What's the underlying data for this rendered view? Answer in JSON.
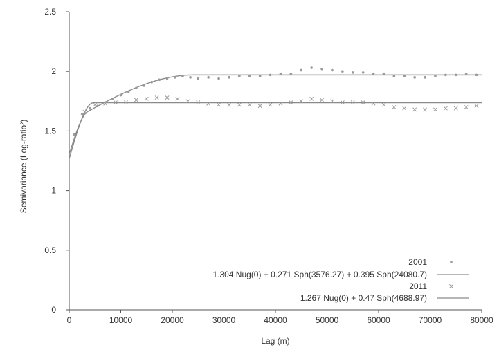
{
  "chart_data": {
    "type": "scatter",
    "title": "",
    "xlabel": "Lag (m)",
    "ylabel": "Semivariance (Log-ratio²)",
    "xlim": [
      0,
      80000
    ],
    "ylim": [
      0,
      2.5
    ],
    "xticks": [
      "0",
      "10000",
      "20000",
      "30000",
      "40000",
      "50000",
      "60000",
      "70000",
      "80000"
    ],
    "yticks": [
      "0",
      "0.5",
      "1",
      "1.5",
      "2",
      "2.5"
    ],
    "grid": false,
    "legend_position": "bottom-right",
    "series": [
      {
        "name": "2001",
        "marker": "dot",
        "color": "#9a9a9a",
        "points": [
          [
            1000,
            1.47
          ],
          [
            2500,
            1.64
          ],
          [
            4000,
            1.69
          ],
          [
            5500,
            1.71
          ],
          [
            7000,
            1.74
          ],
          [
            8500,
            1.77
          ],
          [
            10000,
            1.8
          ],
          [
            11500,
            1.83
          ],
          [
            13000,
            1.86
          ],
          [
            14500,
            1.88
          ],
          [
            16000,
            1.91
          ],
          [
            17500,
            1.93
          ],
          [
            19000,
            1.94
          ],
          [
            20500,
            1.95
          ],
          [
            22000,
            1.96
          ],
          [
            23500,
            1.95
          ],
          [
            25000,
            1.94
          ],
          [
            27000,
            1.95
          ],
          [
            29000,
            1.94
          ],
          [
            31000,
            1.95
          ],
          [
            33000,
            1.96
          ],
          [
            35000,
            1.96
          ],
          [
            37000,
            1.96
          ],
          [
            39000,
            1.97
          ],
          [
            41000,
            1.98
          ],
          [
            43000,
            1.98
          ],
          [
            45000,
            2.01
          ],
          [
            47000,
            2.03
          ],
          [
            49000,
            2.02
          ],
          [
            51000,
            2.01
          ],
          [
            53000,
            2.0
          ],
          [
            55000,
            1.99
          ],
          [
            57000,
            1.99
          ],
          [
            59000,
            1.98
          ],
          [
            61000,
            1.98
          ],
          [
            63000,
            1.96
          ],
          [
            65000,
            1.96
          ],
          [
            67000,
            1.95
          ],
          [
            69000,
            1.95
          ],
          [
            71000,
            1.96
          ],
          [
            73000,
            1.97
          ],
          [
            75000,
            1.97
          ],
          [
            77000,
            1.98
          ],
          [
            79000,
            1.97
          ]
        ]
      },
      {
        "name": "2011",
        "marker": "x",
        "color": "#9a9a9a",
        "points": [
          [
            3000,
            1.66
          ],
          [
            5000,
            1.72
          ],
          [
            7000,
            1.73
          ],
          [
            9000,
            1.74
          ],
          [
            11000,
            1.74
          ],
          [
            13000,
            1.76
          ],
          [
            15000,
            1.77
          ],
          [
            17000,
            1.78
          ],
          [
            19000,
            1.78
          ],
          [
            21000,
            1.77
          ],
          [
            23000,
            1.75
          ],
          [
            25000,
            1.74
          ],
          [
            27000,
            1.73
          ],
          [
            29000,
            1.72
          ],
          [
            31000,
            1.72
          ],
          [
            33000,
            1.72
          ],
          [
            35000,
            1.72
          ],
          [
            37000,
            1.71
          ],
          [
            39000,
            1.72
          ],
          [
            41000,
            1.73
          ],
          [
            43000,
            1.74
          ],
          [
            45000,
            1.75
          ],
          [
            47000,
            1.77
          ],
          [
            49000,
            1.76
          ],
          [
            51000,
            1.75
          ],
          [
            53000,
            1.74
          ],
          [
            55000,
            1.74
          ],
          [
            57000,
            1.74
          ],
          [
            59000,
            1.73
          ],
          [
            61000,
            1.72
          ],
          [
            63000,
            1.7
          ],
          [
            65000,
            1.69
          ],
          [
            67000,
            1.68
          ],
          [
            69000,
            1.68
          ],
          [
            71000,
            1.68
          ],
          [
            73000,
            1.69
          ],
          [
            75000,
            1.69
          ],
          [
            77000,
            1.7
          ],
          [
            79000,
            1.71
          ]
        ]
      }
    ],
    "models": [
      {
        "label": "1.304 Nug(0) + 0.271 Sph(3576.27) + 0.395 Sph(24080.7)",
        "nugget": 1.304,
        "components": [
          {
            "sill": 0.271,
            "range": 3576.27
          },
          {
            "sill": 0.395,
            "range": 24080.7
          }
        ],
        "color": "#8a8a8a"
      },
      {
        "label": "1.267 Nug(0) + 0.47 Sph(4688.97)",
        "nugget": 1.267,
        "components": [
          {
            "sill": 0.47,
            "range": 4688.97
          }
        ],
        "color": "#8a8a8a"
      }
    ]
  }
}
